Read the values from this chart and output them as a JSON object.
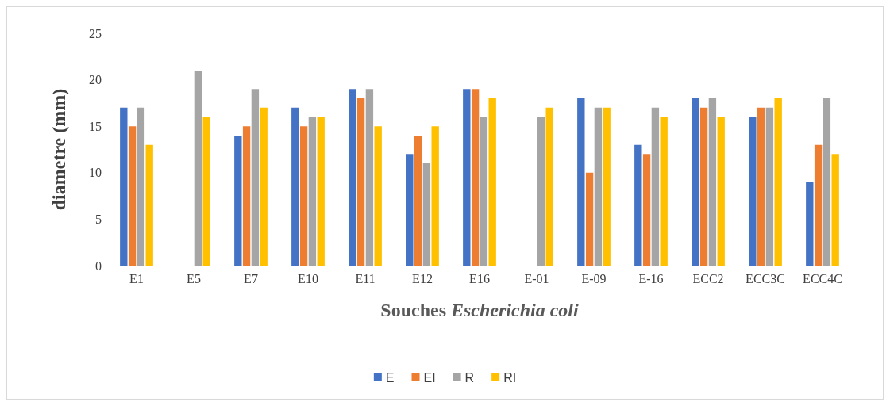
{
  "chart_data": {
    "type": "bar",
    "xlabel": "Souches Escherichia coli",
    "ylabel": "diametre (mm)",
    "categories": [
      "E1",
      "E5",
      "E7",
      "E10",
      "E11",
      "E12",
      "E16",
      "E-01",
      "E-09",
      "E-16",
      "ECC2",
      "ECC3C",
      "ECC4C"
    ],
    "series": [
      {
        "name": "E",
        "color": "#4472c4",
        "values": [
          17,
          0,
          14,
          17,
          19,
          12,
          19,
          0,
          18,
          13,
          18,
          16,
          9
        ]
      },
      {
        "name": "EI",
        "color": "#ed7d31",
        "values": [
          15,
          0,
          15,
          15,
          18,
          14,
          19,
          0,
          10,
          12,
          17,
          17,
          13
        ]
      },
      {
        "name": "R",
        "color": "#a5a5a5",
        "values": [
          17,
          21,
          19,
          16,
          19,
          11,
          16,
          16,
          17,
          17,
          18,
          17,
          18
        ]
      },
      {
        "name": "RI",
        "color": "#ffc000",
        "values": [
          13,
          16,
          17,
          16,
          15,
          15,
          18,
          17,
          17,
          16,
          16,
          18,
          12
        ]
      }
    ],
    "ylim": [
      0,
      25
    ],
    "yticks": [
      0,
      5,
      10,
      15,
      20,
      25
    ],
    "grid": false,
    "legend": "bottom"
  }
}
